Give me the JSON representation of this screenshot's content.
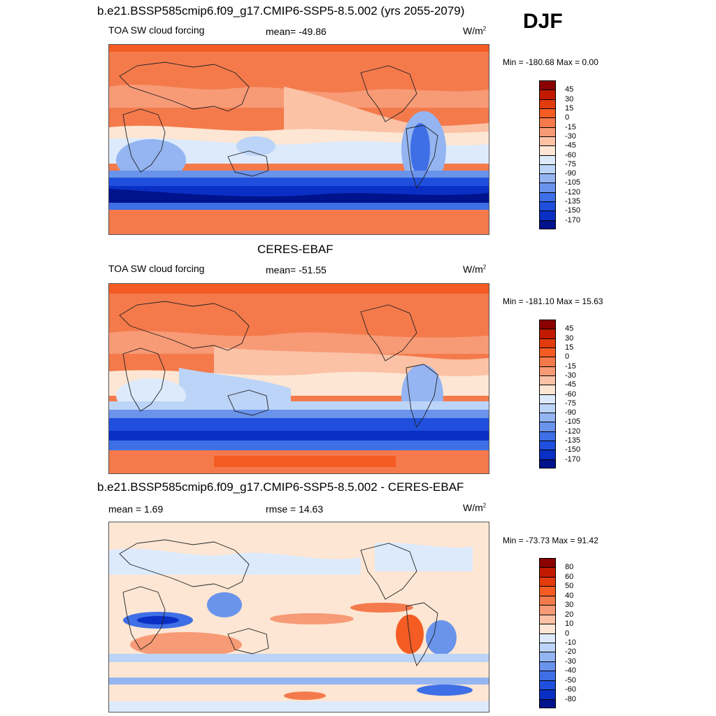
{
  "season": "DJF",
  "panels": [
    {
      "title": "b.e21.BSSP585cmip6.f09_g17.CMIP6-SSP5-8.5.002 (yrs 2055-2079)",
      "left_label": "TOA SW cloud forcing",
      "center_label": "mean= -49.86",
      "units": "W/m",
      "units_sup": "2",
      "minmax": "Min = -180.68 Max =   0.00",
      "levels": [
        "45",
        "30",
        "15",
        "0",
        "-15",
        "-30",
        "-45",
        "-60",
        "-75",
        "-90",
        "-105",
        "-120",
        "-135",
        "-150",
        "-170"
      ],
      "colors": [
        "#8b0000",
        "#c11a00",
        "#e23b0c",
        "#f45c24",
        "#f47a4c",
        "#f79a76",
        "#fbc2a6",
        "#fde6d3",
        "#dceafc",
        "#bcd4f7",
        "#94b5f2",
        "#6a93ec",
        "#3f6fe6",
        "#1f4fdc",
        "#0a2fc4",
        "#00128c"
      ]
    },
    {
      "title": "CERES-EBAF",
      "left_label": "TOA SW cloud forcing",
      "center_label": "mean= -51.55",
      "units": "W/m",
      "units_sup": "2",
      "minmax": "Min = -181.10 Max =  15.63",
      "levels": [
        "45",
        "30",
        "15",
        "0",
        "-15",
        "-30",
        "-45",
        "-60",
        "-75",
        "-90",
        "-105",
        "-120",
        "-135",
        "-150",
        "-170"
      ],
      "colors": [
        "#8b0000",
        "#c11a00",
        "#e23b0c",
        "#f45c24",
        "#f47a4c",
        "#f79a76",
        "#fbc2a6",
        "#fde6d3",
        "#dceafc",
        "#bcd4f7",
        "#94b5f2",
        "#6a93ec",
        "#3f6fe6",
        "#1f4fdc",
        "#0a2fc4",
        "#00128c"
      ]
    },
    {
      "title": "b.e21.BSSP585cmip6.f09_g17.CMIP6-SSP5-8.5.002 - CERES-EBAF",
      "left_label": "mean =   1.69",
      "center_label": "rmse =  14.63",
      "units": "W/m",
      "units_sup": "2",
      "minmax": "Min = -73.73 Max =  91.42",
      "levels": [
        "80",
        "60",
        "50",
        "40",
        "30",
        "20",
        "10",
        "0",
        "-10",
        "-20",
        "-30",
        "-40",
        "-50",
        "-60",
        "-80"
      ],
      "colors": [
        "#8b0000",
        "#c11a00",
        "#e23b0c",
        "#f45c24",
        "#f47a4c",
        "#f79a76",
        "#fbc2a6",
        "#fde6d3",
        "#dceafc",
        "#bcd4f7",
        "#94b5f2",
        "#6a93ec",
        "#3f6fe6",
        "#1f4fdc",
        "#0a2fc4",
        "#00128c"
      ]
    }
  ]
}
